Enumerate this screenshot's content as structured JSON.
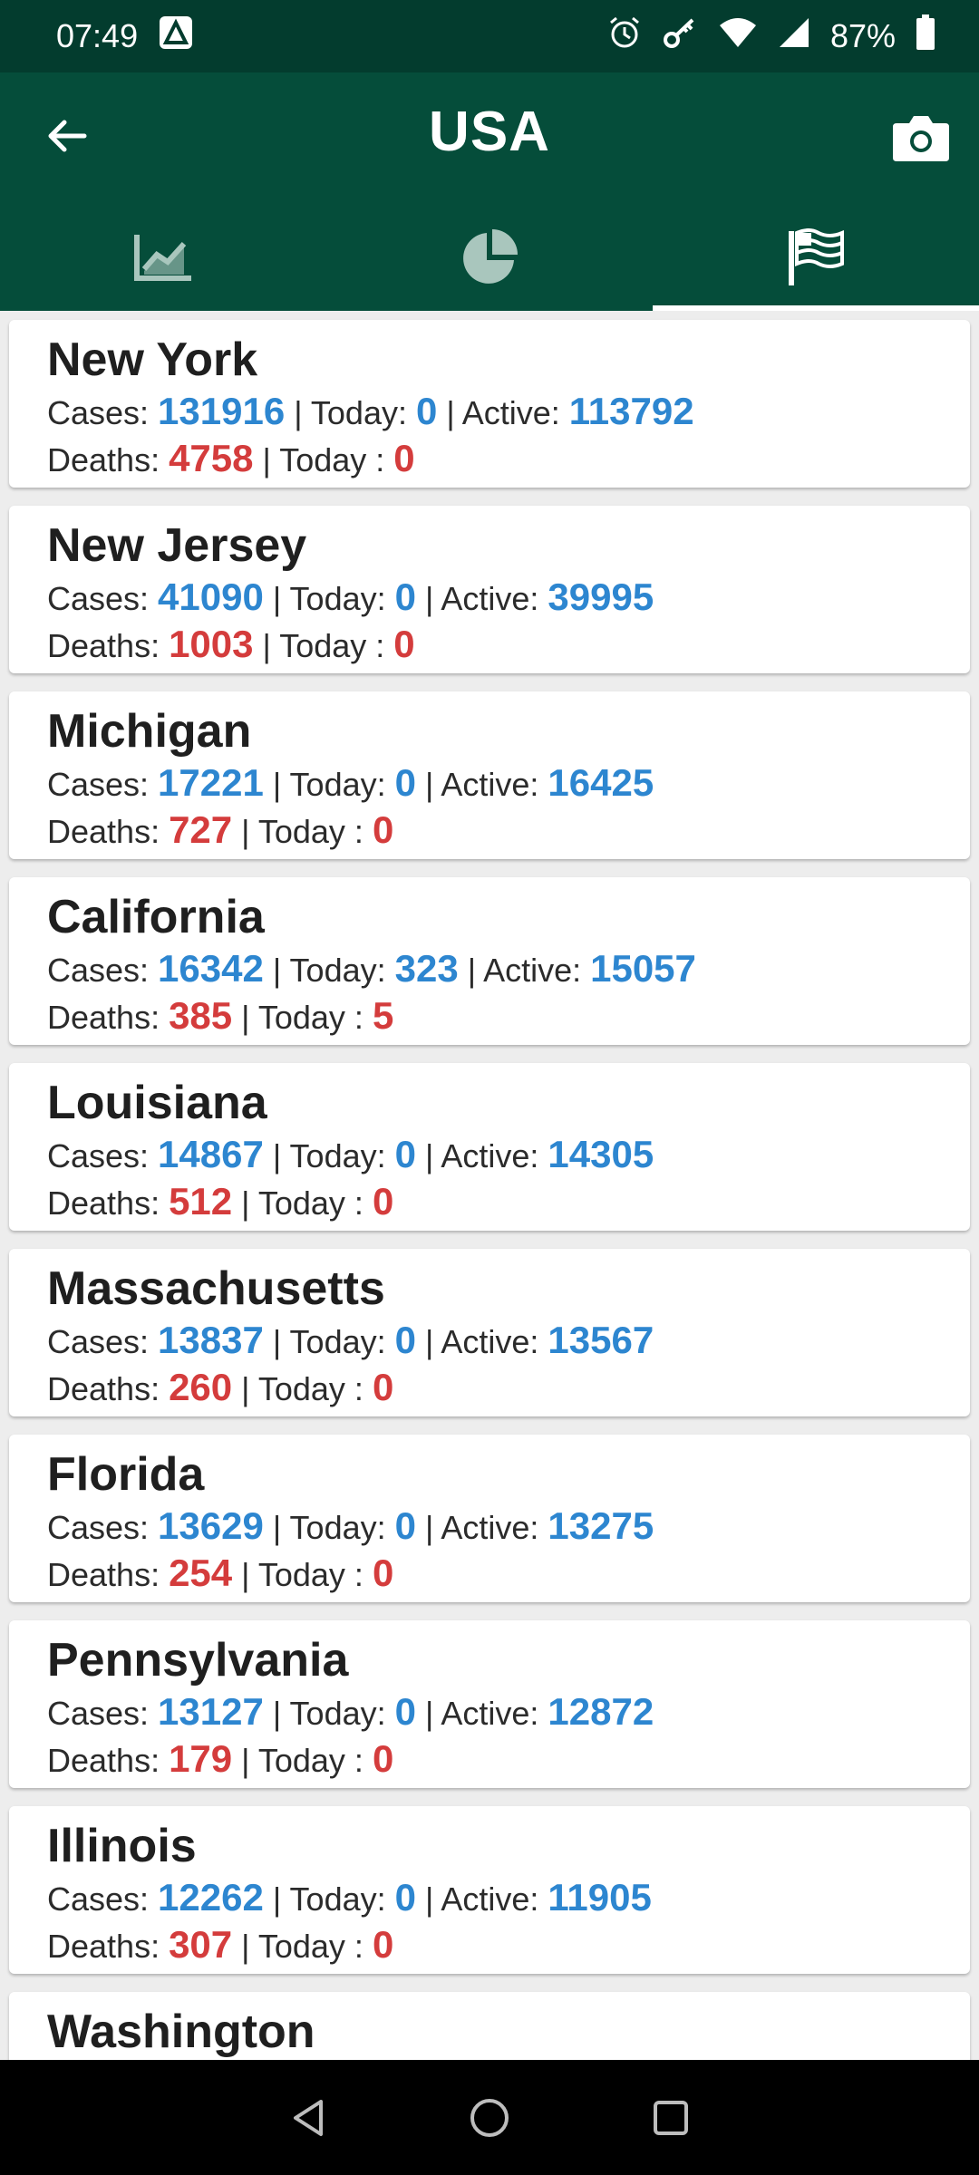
{
  "status_bar": {
    "time": "07:49",
    "battery": "87%",
    "icons": [
      "notification-a-icon",
      "alarm-icon",
      "key-icon",
      "wifi-icon",
      "signal-icon",
      "battery-icon"
    ]
  },
  "header": {
    "title": "USA",
    "back_icon": "back-arrow-icon",
    "camera_icon": "camera-icon"
  },
  "tabs": [
    {
      "icon": "line-chart-icon",
      "active": false
    },
    {
      "icon": "pie-chart-icon",
      "active": false
    },
    {
      "icon": "flag-icon",
      "active": true
    }
  ],
  "labels": {
    "cases": "Cases: ",
    "today": " | Today: ",
    "active": " | Active: ",
    "deaths": "Deaths: ",
    "today_deaths": " | Today : "
  },
  "states": [
    {
      "name": "New York",
      "cases": "131916",
      "today": "0",
      "active": "113792",
      "deaths": "4758",
      "today_deaths": "0"
    },
    {
      "name": "New Jersey",
      "cases": "41090",
      "today": "0",
      "active": "39995",
      "deaths": "1003",
      "today_deaths": "0"
    },
    {
      "name": "Michigan",
      "cases": "17221",
      "today": "0",
      "active": "16425",
      "deaths": "727",
      "today_deaths": "0"
    },
    {
      "name": "California",
      "cases": "16342",
      "today": "323",
      "active": "15057",
      "deaths": "385",
      "today_deaths": "5"
    },
    {
      "name": "Louisiana",
      "cases": "14867",
      "today": "0",
      "active": "14305",
      "deaths": "512",
      "today_deaths": "0"
    },
    {
      "name": "Massachusetts",
      "cases": "13837",
      "today": "0",
      "active": "13567",
      "deaths": "260",
      "today_deaths": "0"
    },
    {
      "name": "Florida",
      "cases": "13629",
      "today": "0",
      "active": "13275",
      "deaths": "254",
      "today_deaths": "0"
    },
    {
      "name": "Pennsylvania",
      "cases": "13127",
      "today": "0",
      "active": "12872",
      "deaths": "179",
      "today_deaths": "0"
    },
    {
      "name": "Illinois",
      "cases": "12262",
      "today": "0",
      "active": "11905",
      "deaths": "307",
      "today_deaths": "0"
    },
    {
      "name": "Washington"
    }
  ],
  "colors": {
    "app_bar": "#054d3a",
    "status_bar": "#033c2e",
    "value_blue": "#2d86d0",
    "value_red": "#d43c3c"
  },
  "nav_bar": {
    "icons": [
      "back-triangle-icon",
      "home-circle-icon",
      "recents-square-icon"
    ]
  }
}
